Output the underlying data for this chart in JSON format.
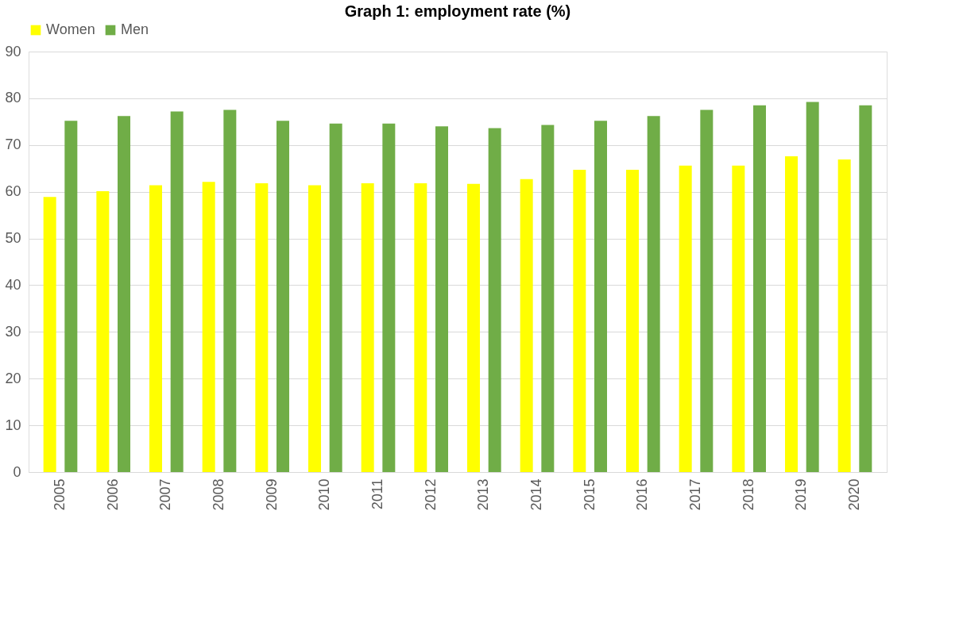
{
  "chart_data": {
    "type": "bar",
    "title": "Graph 1: employment rate (%)",
    "categories": [
      "2005",
      "2006",
      "2007",
      "2008",
      "2009",
      "2010",
      "2011",
      "2012",
      "2013",
      "2014",
      "2015",
      "2016",
      "2017",
      "2018",
      "2019",
      "2020"
    ],
    "series": [
      {
        "name": "Women",
        "color": "#ffff00",
        "values": [
          58.9,
          60.1,
          61.4,
          62.1,
          61.8,
          61.4,
          61.8,
          61.8,
          61.7,
          62.7,
          64.7,
          64.7,
          65.6,
          65.6,
          67.6,
          66.9
        ]
      },
      {
        "name": "Men",
        "color": "#70ad47",
        "values": [
          75.2,
          76.2,
          77.2,
          77.5,
          75.2,
          74.6,
          74.6,
          74.0,
          73.6,
          74.3,
          75.2,
          76.2,
          77.5,
          78.5,
          79.2,
          78.5
        ]
      }
    ],
    "ylim": [
      0,
      90
    ],
    "yticks": [
      0,
      10,
      20,
      30,
      40,
      50,
      60,
      70,
      80,
      90
    ],
    "grid": "y",
    "legend": "top"
  }
}
